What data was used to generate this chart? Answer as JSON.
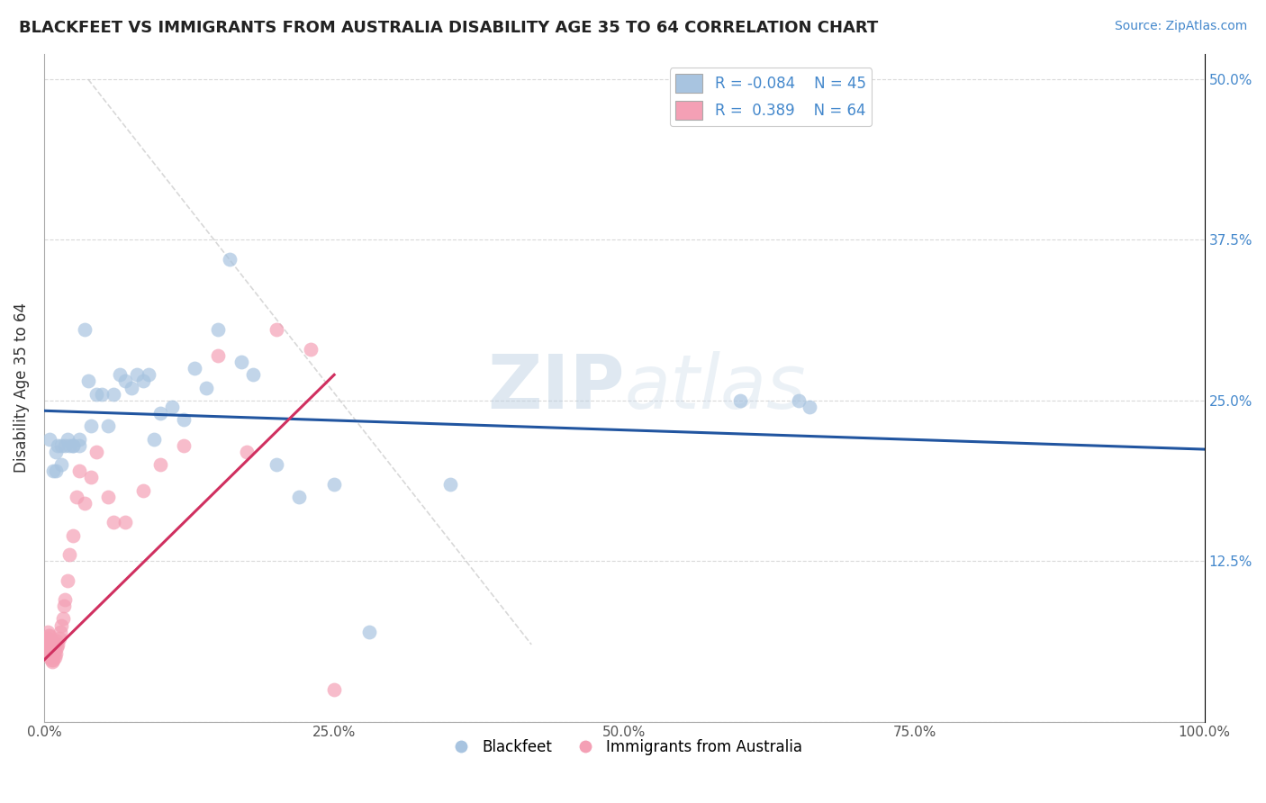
{
  "title": "BLACKFEET VS IMMIGRANTS FROM AUSTRALIA DISABILITY AGE 35 TO 64 CORRELATION CHART",
  "source_text": "Source: ZipAtlas.com",
  "ylabel": "Disability Age 35 to 64",
  "xlabel": "",
  "xlim": [
    0.0,
    1.0
  ],
  "ylim": [
    0.0,
    0.52
  ],
  "x_ticks": [
    0.0,
    0.25,
    0.5,
    0.75,
    1.0
  ],
  "x_tick_labels": [
    "0.0%",
    "25.0%",
    "50.0%",
    "75.0%",
    "100.0%"
  ],
  "y_ticks": [
    0.125,
    0.25,
    0.375,
    0.5
  ],
  "y_tick_labels": [
    "12.5%",
    "25.0%",
    "37.5%",
    "50.0%"
  ],
  "legend_r1": "R = -0.084",
  "legend_n1": "N = 45",
  "legend_r2": "R =  0.389",
  "legend_n2": "N = 64",
  "color_blue": "#a8c4e0",
  "color_pink": "#f4a0b5",
  "line_blue": "#2155a0",
  "line_pink": "#d03060",
  "line_dashed_color": "#c8c8c8",
  "watermark_color": "#ccd8e8",
  "blackfeet_x": [
    0.005,
    0.008,
    0.01,
    0.01,
    0.012,
    0.015,
    0.015,
    0.018,
    0.02,
    0.022,
    0.025,
    0.025,
    0.03,
    0.03,
    0.035,
    0.038,
    0.04,
    0.045,
    0.05,
    0.055,
    0.06,
    0.065,
    0.07,
    0.075,
    0.08,
    0.085,
    0.09,
    0.095,
    0.1,
    0.11,
    0.12,
    0.13,
    0.14,
    0.15,
    0.16,
    0.17,
    0.18,
    0.2,
    0.22,
    0.25,
    0.28,
    0.35,
    0.6,
    0.65,
    0.66
  ],
  "blackfeet_y": [
    0.22,
    0.195,
    0.21,
    0.195,
    0.215,
    0.2,
    0.215,
    0.215,
    0.22,
    0.215,
    0.215,
    0.215,
    0.22,
    0.215,
    0.305,
    0.265,
    0.23,
    0.255,
    0.255,
    0.23,
    0.255,
    0.27,
    0.265,
    0.26,
    0.27,
    0.265,
    0.27,
    0.22,
    0.24,
    0.245,
    0.235,
    0.275,
    0.26,
    0.305,
    0.36,
    0.28,
    0.27,
    0.2,
    0.175,
    0.185,
    0.07,
    0.185,
    0.25,
    0.25,
    0.245
  ],
  "australia_x": [
    0.002,
    0.002,
    0.002,
    0.003,
    0.003,
    0.003,
    0.003,
    0.004,
    0.004,
    0.004,
    0.004,
    0.004,
    0.005,
    0.005,
    0.005,
    0.005,
    0.005,
    0.005,
    0.005,
    0.006,
    0.006,
    0.006,
    0.006,
    0.006,
    0.006,
    0.007,
    0.007,
    0.007,
    0.007,
    0.008,
    0.008,
    0.008,
    0.009,
    0.009,
    0.01,
    0.01,
    0.011,
    0.011,
    0.012,
    0.013,
    0.014,
    0.015,
    0.016,
    0.017,
    0.018,
    0.02,
    0.022,
    0.025,
    0.028,
    0.03,
    0.035,
    0.04,
    0.045,
    0.055,
    0.06,
    0.07,
    0.085,
    0.1,
    0.12,
    0.15,
    0.175,
    0.2,
    0.23,
    0.25
  ],
  "australia_y": [
    0.055,
    0.06,
    0.065,
    0.055,
    0.06,
    0.065,
    0.07,
    0.055,
    0.058,
    0.06,
    0.063,
    0.067,
    0.05,
    0.053,
    0.055,
    0.057,
    0.06,
    0.063,
    0.067,
    0.048,
    0.05,
    0.053,
    0.055,
    0.058,
    0.063,
    0.047,
    0.05,
    0.055,
    0.06,
    0.048,
    0.052,
    0.058,
    0.05,
    0.055,
    0.053,
    0.06,
    0.058,
    0.063,
    0.06,
    0.065,
    0.07,
    0.075,
    0.08,
    0.09,
    0.095,
    0.11,
    0.13,
    0.145,
    0.175,
    0.195,
    0.17,
    0.19,
    0.21,
    0.175,
    0.155,
    0.155,
    0.18,
    0.2,
    0.215,
    0.285,
    0.21,
    0.305,
    0.29,
    0.025
  ],
  "blue_line": {
    "x0": 0.0,
    "y0": 0.242,
    "x1": 1.0,
    "y1": 0.212
  },
  "pink_line": {
    "x0": 0.0,
    "y0": 0.048,
    "x1": 0.25,
    "y1": 0.27
  },
  "dash_line": {
    "x0": 0.038,
    "y0": 0.5,
    "x1": 0.42,
    "y1": 0.06
  },
  "bg_color": "#ffffff",
  "grid_color": "#d0d0d0"
}
